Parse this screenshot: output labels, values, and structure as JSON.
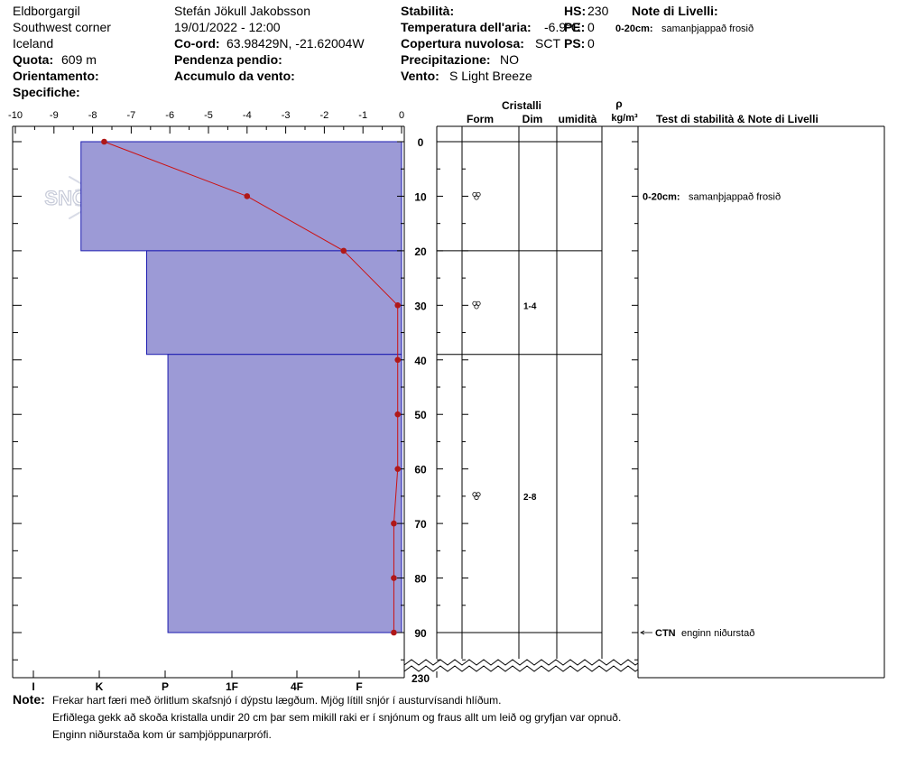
{
  "header": {
    "location": "Eldborgargil",
    "region": "Southwest corner",
    "country": "Iceland",
    "elevation_label": "Quota:",
    "elevation_value": "609 m",
    "aspect_label": "Orientamento:",
    "specifics_label": "Specifiche:",
    "observer": "Stefán Jökull Jakobsson",
    "datetime": "19/01/2022 - 12:00",
    "coord_label": "Co-ord:",
    "coord_value": "63.98429N, -21.62004W",
    "slope_label": "Pendenza pendio:",
    "wind_loading_label": "Accumulo da vento:",
    "stability_label": "Stabilità:",
    "air_temp_label": "Temperatura dell'aria:",
    "air_temp_value": "-6.9°C",
    "sky_label": "Copertura nuvolosa:",
    "sky_value": "SCT",
    "precip_label": "Precipitazione:",
    "precip_value": "NO",
    "wind_label": "Vento:",
    "wind_value": "S Light Breeze",
    "hs_label": "HS:",
    "hs_value": "230",
    "pen_label": "PE:",
    "pen_value": "0",
    "ps_label": "PS:",
    "ps_value": "0",
    "layer_notes_label": "Note di Livelli:",
    "layer_note_range": "0-20cm:",
    "layer_note_text": "samanþjappað frosið"
  },
  "logo": {
    "text": "SNOWPILOT"
  },
  "table_headers": {
    "crystals": "Cristalli",
    "form": "Form",
    "size": "Dim",
    "moisture": "umidità",
    "rho": "ρ",
    "density_unit": "kg/m³",
    "tests_notes": "Test di stabilità & Note di Livelli"
  },
  "notes": {
    "label": "Note:",
    "lines": [
      "Frekar hart færi með örlitlum skafsnjó í dýpstu lægðum. Mjög lítill snjór í austurvísandi hlíðum.",
      "Erfiðlega gekk að skoða kristalla undir 20 cm þar sem mikill raki er í snjónum og fraus allt um leið og gryfjan var opnuð.",
      "Enginn niðurstaða kom úr samþjöppunarprófi."
    ]
  },
  "layer_rows": [
    {
      "depth": 10,
      "form": "rounded-grain-icon",
      "size": ""
    },
    {
      "depth": 30,
      "form": "rounded-grain-icon",
      "size": "1-4"
    },
    {
      "depth": 65,
      "form": "rounded-grain-icon",
      "size": "2-8"
    }
  ],
  "test_results": [
    {
      "depth": 0,
      "range": "0-20cm:",
      "text": "samanþjappað frosið"
    },
    {
      "depth": 90,
      "range": "CTN",
      "text": "enginn niðurstað"
    }
  ],
  "colors": {
    "layer_fill": "#9c9ad6",
    "layer_stroke": "#1b1bb0",
    "temp_line": "#cc1111",
    "temp_marker": "#b01818"
  },
  "chart_data": {
    "type": "area",
    "title": "",
    "temperature_axis": {
      "label": "",
      "ticks": [
        -10,
        -9,
        -8,
        -7,
        -6,
        -5,
        -4,
        -3,
        -2,
        -1,
        0
      ],
      "range": [
        -10,
        0
      ]
    },
    "hardness_axis": {
      "ticks": [
        "I",
        "K",
        "P",
        "1F",
        "4F",
        "F"
      ]
    },
    "depth_axis": {
      "ticks": [
        0,
        10,
        20,
        30,
        40,
        50,
        60,
        70,
        80,
        90
      ],
      "bottom_label": "230",
      "range": [
        0,
        90
      ],
      "inverted": true
    },
    "layers": [
      {
        "top": 0,
        "bottom": 20,
        "hardness_x": -8.3
      },
      {
        "top": 20,
        "bottom": 39,
        "hardness_x": -6.6
      },
      {
        "top": 39,
        "bottom": 90,
        "hardness_x": -6.05
      }
    ],
    "layer_boundaries": [
      0,
      20,
      39,
      90
    ],
    "temperature_profile": [
      {
        "depth": 0,
        "temp": -7.7
      },
      {
        "depth": 10,
        "temp": -4.0
      },
      {
        "depth": 20,
        "temp": -1.5
      },
      {
        "depth": 30,
        "temp": -0.1
      },
      {
        "depth": 40,
        "temp": -0.1
      },
      {
        "depth": 50,
        "temp": -0.1
      },
      {
        "depth": 60,
        "temp": -0.1
      },
      {
        "depth": 70,
        "temp": -0.2
      },
      {
        "depth": 80,
        "temp": -0.2
      },
      {
        "depth": 90,
        "temp": -0.2
      }
    ]
  }
}
